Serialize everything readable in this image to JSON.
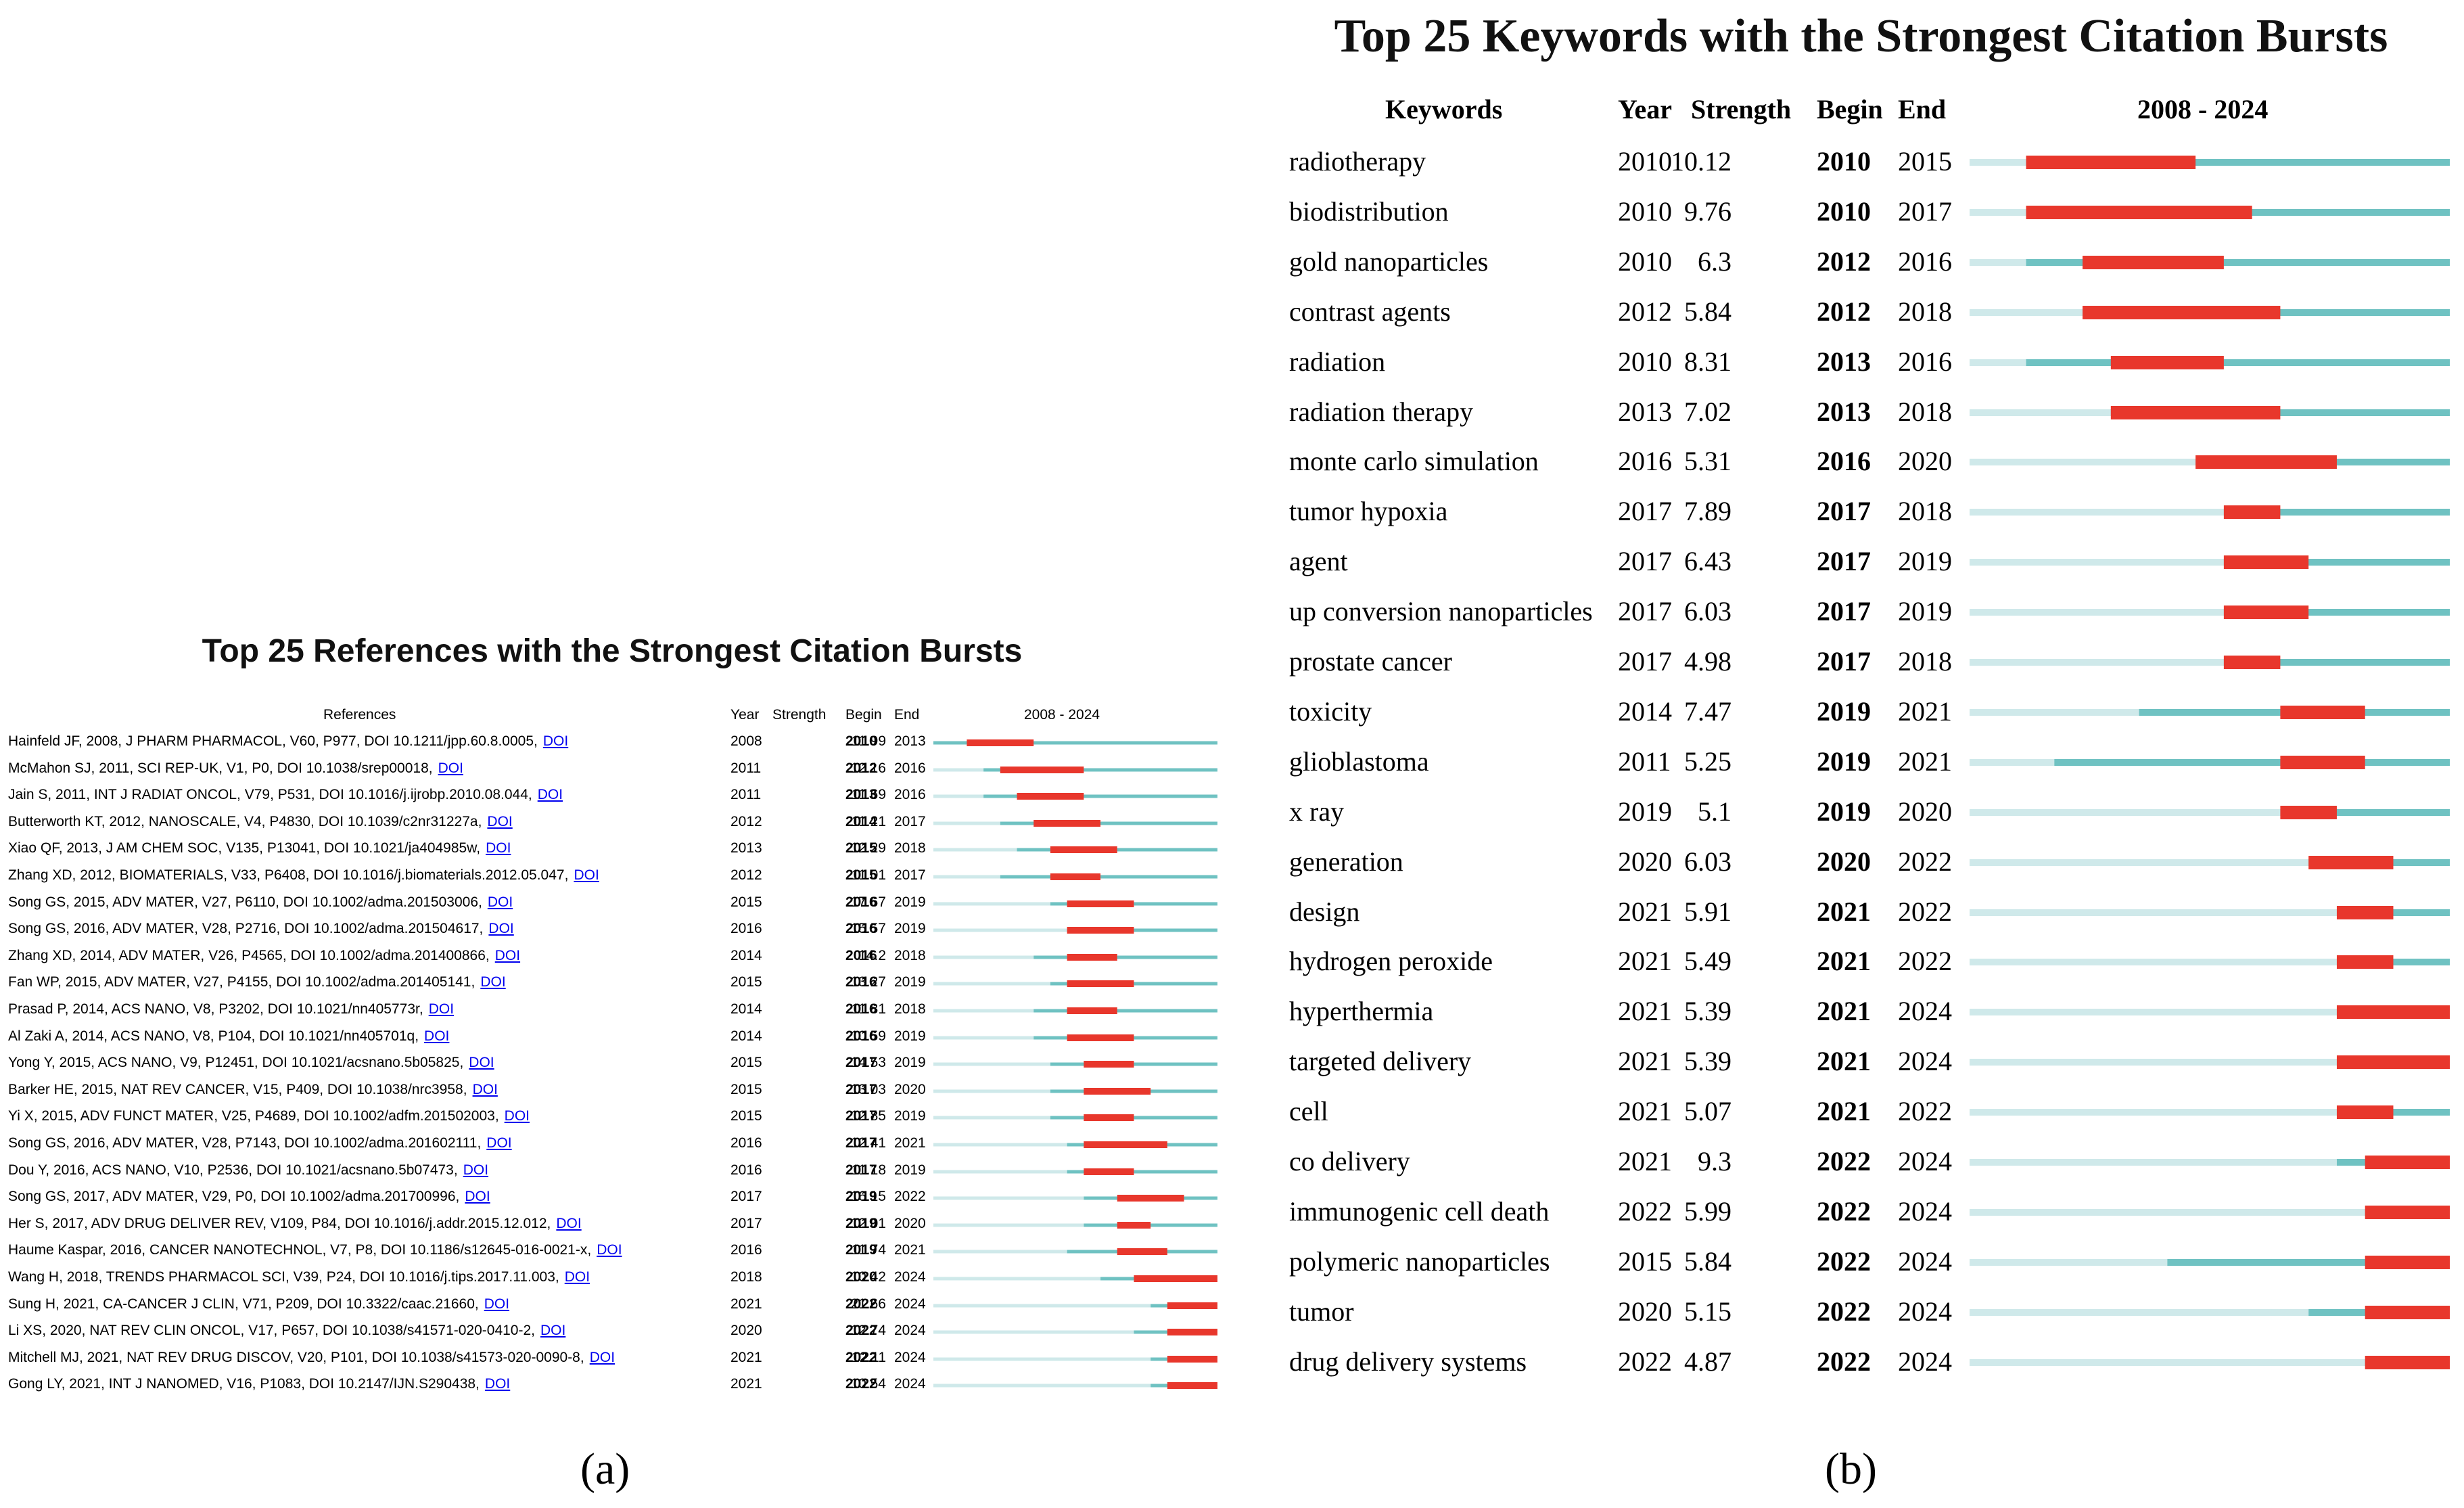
{
  "chart_data": [
    {
      "type": "table",
      "panel": "a",
      "title": "Top 25 References with the Strongest Citation Bursts",
      "columns": [
        "References",
        "Year",
        "Strength",
        "Begin",
        "End",
        "2008 - 2024"
      ],
      "range": [
        2008,
        2024
      ],
      "colors": {
        "burst": "#e8372c",
        "active": "#6fc2c2",
        "inactive": "#cfe9ea"
      },
      "rows": [
        {
          "ref": "Hainfeld JF, 2008, J PHARM PHARMACOL, V60, P977, DOI 10.1211/jpp.60.8.0005,",
          "doi": "DOI",
          "year": 2008,
          "strength": "11.99",
          "begin": 2010,
          "end": 2013
        },
        {
          "ref": "McMahon SJ, 2011, SCI REP-UK, V1, P0, DOI 10.1038/srep00018,",
          "doi": "DOI",
          "year": 2011,
          "strength": "12.16",
          "begin": 2012,
          "end": 2016
        },
        {
          "ref": "Jain S, 2011, INT J RADIAT ONCOL, V79, P531, DOI 10.1016/j.ijrobp.2010.08.044,",
          "doi": "DOI",
          "year": 2011,
          "strength": "11.69",
          "begin": 2013,
          "end": 2016
        },
        {
          "ref": "Butterworth KT, 2012, NANOSCALE, V4, P4830, DOI 10.1039/c2nr31227a,",
          "doi": "DOI",
          "year": 2012,
          "strength": "11.21",
          "begin": 2014,
          "end": 2017
        },
        {
          "ref": "Xiao QF, 2013, J AM CHEM SOC, V135, P13041, DOI 10.1021/ja404985w,",
          "doi": "DOI",
          "year": 2013,
          "strength": "12.29",
          "begin": 2015,
          "end": 2018
        },
        {
          "ref": "Zhang XD, 2012, BIOMATERIALS, V33, P6408, DOI 10.1016/j.biomaterials.2012.05.047,",
          "doi": "DOI",
          "year": 2012,
          "strength": "11.01",
          "begin": 2015,
          "end": 2017
        },
        {
          "ref": "Song GS, 2015, ADV MATER, V27, P6110, DOI 10.1002/adma.201503006,",
          "doi": "DOI",
          "year": 2015,
          "strength": "17.67",
          "begin": 2016,
          "end": 2019
        },
        {
          "ref": "Song GS, 2016, ADV MATER, V28, P2716, DOI 10.1002/adma.201504617,",
          "doi": "DOI",
          "year": 2016,
          "strength": "15.57",
          "begin": 2016,
          "end": 2019
        },
        {
          "ref": "Zhang XD, 2014, ADV MATER, V26, P4565, DOI 10.1002/adma.201400866,",
          "doi": "DOI",
          "year": 2014,
          "strength": "14.2",
          "begin": 2016,
          "end": 2018
        },
        {
          "ref": "Fan WP, 2015, ADV MATER, V27, P4155, DOI 10.1002/adma.201405141,",
          "doi": "DOI",
          "year": 2015,
          "strength": "13.27",
          "begin": 2016,
          "end": 2019
        },
        {
          "ref": "Prasad P, 2014, ACS NANO, V8, P3202, DOI 10.1021/nn405773r,",
          "doi": "DOI",
          "year": 2014,
          "strength": "11.81",
          "begin": 2016,
          "end": 2018
        },
        {
          "ref": "Al Zaki A, 2014, ACS NANO, V8, P104, DOI 10.1021/nn405701q,",
          "doi": "DOI",
          "year": 2014,
          "strength": "10.59",
          "begin": 2016,
          "end": 2019
        },
        {
          "ref": "Yong Y, 2015, ACS NANO, V9, P12451, DOI 10.1021/acsnano.5b05825,",
          "doi": "DOI",
          "year": 2015,
          "strength": "14.53",
          "begin": 2017,
          "end": 2019
        },
        {
          "ref": "Barker HE, 2015, NAT REV CANCER, V15, P409, DOI 10.1038/nrc3958,",
          "doi": "DOI",
          "year": 2015,
          "strength": "13.03",
          "begin": 2017,
          "end": 2020
        },
        {
          "ref": "Yi X, 2015, ADV FUNCT MATER, V25, P4689, DOI 10.1002/adfm.201502003,",
          "doi": "DOI",
          "year": 2015,
          "strength": "12.85",
          "begin": 2017,
          "end": 2019
        },
        {
          "ref": "Song GS, 2016, ADV MATER, V28, P7143, DOI 10.1002/adma.201602111,",
          "doi": "DOI",
          "year": 2016,
          "strength": "12.41",
          "begin": 2017,
          "end": 2021
        },
        {
          "ref": "Dou Y, 2016, ACS NANO, V10, P2536, DOI 10.1021/acsnano.5b07473,",
          "doi": "DOI",
          "year": 2016,
          "strength": "11.18",
          "begin": 2017,
          "end": 2019
        },
        {
          "ref": "Song GS, 2017, ADV MATER, V29, P0, DOI 10.1002/adma.201700996,",
          "doi": "DOI",
          "year": 2017,
          "strength": "16.15",
          "begin": 2019,
          "end": 2022
        },
        {
          "ref": "Her S, 2017, ADV DRUG DELIVER REV, V109, P84, DOI 10.1016/j.addr.2015.12.012,",
          "doi": "DOI",
          "year": 2017,
          "strength": "12.01",
          "begin": 2019,
          "end": 2020
        },
        {
          "ref": "Haume Kaspar, 2016, CANCER NANOTECHNOL, V7, P8, DOI 10.1186/s12645-016-0021-x,",
          "doi": "DOI",
          "year": 2016,
          "strength": "11.74",
          "begin": 2019,
          "end": 2021
        },
        {
          "ref": "Wang H, 2018, TRENDS PHARMACOL SCI, V39, P24, DOI 10.1016/j.tips.2017.11.003,",
          "doi": "DOI",
          "year": 2018,
          "strength": "10.42",
          "begin": 2020,
          "end": 2024
        },
        {
          "ref": "Sung H, 2021, CA-CANCER J CLIN, V71, P209, DOI 10.3322/caac.21660,",
          "doi": "DOI",
          "year": 2021,
          "strength": "21.66",
          "begin": 2022,
          "end": 2024
        },
        {
          "ref": "Li XS, 2020, NAT REV CLIN ONCOL, V17, P657, DOI 10.1038/s41571-020-0410-2,",
          "doi": "DOI",
          "year": 2020,
          "strength": "12.74",
          "begin": 2022,
          "end": 2024
        },
        {
          "ref": "Mitchell MJ, 2021, NAT REV DRUG DISCOV, V20, P101, DOI 10.1038/s41573-020-0090-8,",
          "doi": "DOI",
          "year": 2021,
          "strength": "12.11",
          "begin": 2022,
          "end": 2024
        },
        {
          "ref": "Gong LY, 2021, INT J NANOMED, V16, P1083, DOI 10.2147/IJN.S290438,",
          "doi": "DOI",
          "year": 2021,
          "strength": "10.54",
          "begin": 2022,
          "end": 2024
        }
      ]
    },
    {
      "type": "table",
      "panel": "b",
      "title": "Top 25 Keywords with the Strongest Citation Bursts",
      "columns": [
        "Keywords",
        "Year",
        "Strength",
        "Begin",
        "End",
        "2008 - 2024"
      ],
      "range": [
        2008,
        2024
      ],
      "colors": {
        "burst": "#e8372c",
        "active": "#6fc2c2",
        "inactive": "#cfe9ea"
      },
      "rows": [
        {
          "keyword": "radiotherapy",
          "year": 2010,
          "strength": "10.12",
          "begin": 2010,
          "end": 2015
        },
        {
          "keyword": "biodistribution",
          "year": 2010,
          "strength": "9.76",
          "begin": 2010,
          "end": 2017
        },
        {
          "keyword": "gold nanoparticles",
          "year": 2010,
          "strength": "6.3",
          "begin": 2012,
          "end": 2016
        },
        {
          "keyword": "contrast agents",
          "year": 2012,
          "strength": "5.84",
          "begin": 2012,
          "end": 2018
        },
        {
          "keyword": "radiation",
          "year": 2010,
          "strength": "8.31",
          "begin": 2013,
          "end": 2016
        },
        {
          "keyword": "radiation therapy",
          "year": 2013,
          "strength": "7.02",
          "begin": 2013,
          "end": 2018
        },
        {
          "keyword": "monte carlo simulation",
          "year": 2016,
          "strength": "5.31",
          "begin": 2016,
          "end": 2020
        },
        {
          "keyword": "tumor hypoxia",
          "year": 2017,
          "strength": "7.89",
          "begin": 2017,
          "end": 2018
        },
        {
          "keyword": "agent",
          "year": 2017,
          "strength": "6.43",
          "begin": 2017,
          "end": 2019
        },
        {
          "keyword": "up conversion nanoparticles",
          "year": 2017,
          "strength": "6.03",
          "begin": 2017,
          "end": 2019
        },
        {
          "keyword": "prostate cancer",
          "year": 2017,
          "strength": "4.98",
          "begin": 2017,
          "end": 2018
        },
        {
          "keyword": "toxicity",
          "year": 2014,
          "strength": "7.47",
          "begin": 2019,
          "end": 2021
        },
        {
          "keyword": "glioblastoma",
          "year": 2011,
          "strength": "5.25",
          "begin": 2019,
          "end": 2021
        },
        {
          "keyword": "x ray",
          "year": 2019,
          "strength": "5.1",
          "begin": 2019,
          "end": 2020
        },
        {
          "keyword": "generation",
          "year": 2020,
          "strength": "6.03",
          "begin": 2020,
          "end": 2022
        },
        {
          "keyword": "design",
          "year": 2021,
          "strength": "5.91",
          "begin": 2021,
          "end": 2022
        },
        {
          "keyword": "hydrogen peroxide",
          "year": 2021,
          "strength": "5.49",
          "begin": 2021,
          "end": 2022
        },
        {
          "keyword": "hyperthermia",
          "year": 2021,
          "strength": "5.39",
          "begin": 2021,
          "end": 2024
        },
        {
          "keyword": "targeted delivery",
          "year": 2021,
          "strength": "5.39",
          "begin": 2021,
          "end": 2024
        },
        {
          "keyword": "cell",
          "year": 2021,
          "strength": "5.07",
          "begin": 2021,
          "end": 2022
        },
        {
          "keyword": "co delivery",
          "year": 2021,
          "strength": "9.3",
          "begin": 2022,
          "end": 2024
        },
        {
          "keyword": "immunogenic cell death",
          "year": 2022,
          "strength": "5.99",
          "begin": 2022,
          "end": 2024
        },
        {
          "keyword": "polymeric nanoparticles",
          "year": 2015,
          "strength": "5.84",
          "begin": 2022,
          "end": 2024
        },
        {
          "keyword": "tumor",
          "year": 2020,
          "strength": "5.15",
          "begin": 2022,
          "end": 2024
        },
        {
          "keyword": "drug delivery systems",
          "year": 2022,
          "strength": "4.87",
          "begin": 2022,
          "end": 2024
        }
      ]
    }
  ],
  "captions": {
    "a": "(a)",
    "b": "(b)"
  }
}
